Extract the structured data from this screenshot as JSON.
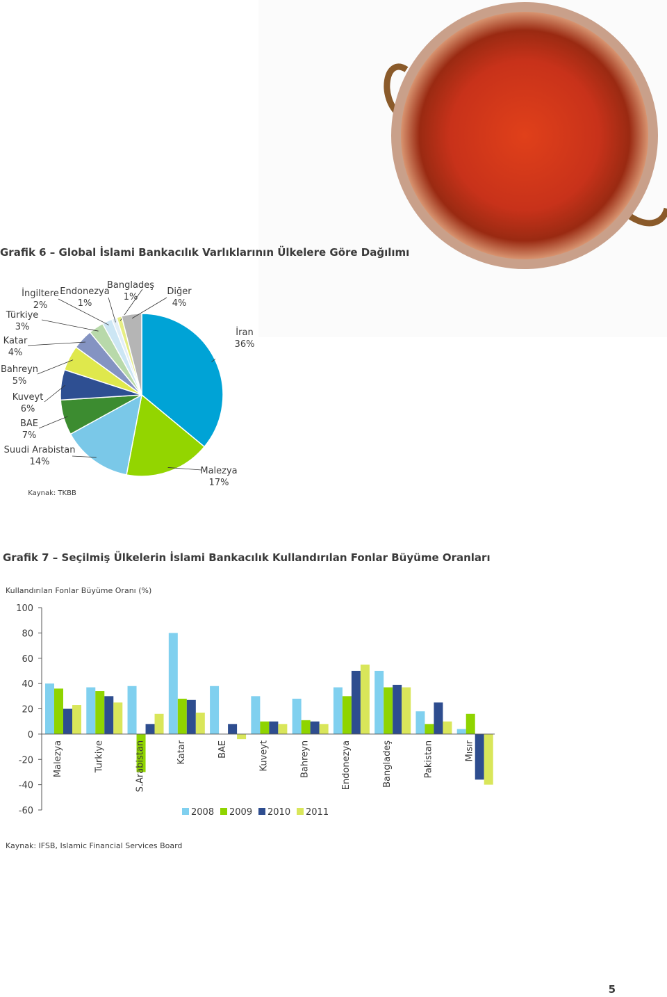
{
  "chart_data": [
    {
      "type": "pie",
      "title": "Grafik 6 – Global İslami Bankacılık Varlıklarının Ülkelere Göre Dağılımı",
      "source": "Kaynak: TKBB",
      "categories": [
        "İran",
        "Malezya",
        "Suudi Arabistan",
        "BAE",
        "Kuveyt",
        "Bahreyn",
        "Katar",
        "Türkiye",
        "İngiltere",
        "Endonezya",
        "Bangladeş",
        "Diğer"
      ],
      "values": [
        36,
        17,
        14,
        7,
        6,
        5,
        4,
        3,
        2,
        1,
        1,
        4
      ],
      "value_labels": [
        "36%",
        "17%",
        "14%",
        "7%",
        "6%",
        "5%",
        "4%",
        "3%",
        "2%",
        "1%",
        "1%",
        "4%"
      ],
      "colors": [
        "#00a3d6",
        "#93d500",
        "#7ac8e8",
        "#3c8c30",
        "#2e4f92",
        "#dfe84c",
        "#8493c2",
        "#b8d9aa",
        "#cce6f4",
        "#e2eef7",
        "#e6ee84",
        "#b5b5b5"
      ]
    },
    {
      "type": "bar",
      "title": "Grafik 7 – Seçilmiş Ülkelerin İslami Bankacılık Kullandırılan Fonlar Büyüme Oranları",
      "y_label": "Kullandırılan Fonlar Büyüme Oranı (%)",
      "source": "Kaynak: IFSB, Islamic Financial Services Board",
      "categories": [
        "Malezya",
        "Turkiye",
        "S.Arabistan",
        "Katar",
        "BAE",
        "Kuveyt",
        "Bahreyn",
        "Endonezya",
        "Bangladeş",
        "Pakistan",
        "Mısır"
      ],
      "series": [
        {
          "name": "2008",
          "color": "#80d0ef",
          "values": [
            40,
            37,
            38,
            80,
            38,
            30,
            28,
            37,
            50,
            18,
            4
          ]
        },
        {
          "name": "2009",
          "color": "#8fd400",
          "values": [
            36,
            34,
            -30,
            28,
            null,
            10,
            11,
            30,
            37,
            8,
            16
          ]
        },
        {
          "name": "2010",
          "color": "#2e4d8f",
          "values": [
            20,
            30,
            8,
            27,
            8,
            10,
            10,
            50,
            39,
            25,
            -36
          ]
        },
        {
          "name": "2011",
          "color": "#d9e65a",
          "values": [
            23,
            25,
            16,
            17,
            -4,
            8,
            8,
            55,
            37,
            10,
            -40
          ]
        }
      ],
      "ylim": [
        -60,
        100
      ],
      "yticks": [
        -60,
        -40,
        -20,
        0,
        20,
        40,
        60,
        80,
        100
      ],
      "legend": "bottom"
    }
  ],
  "page_number": "5"
}
